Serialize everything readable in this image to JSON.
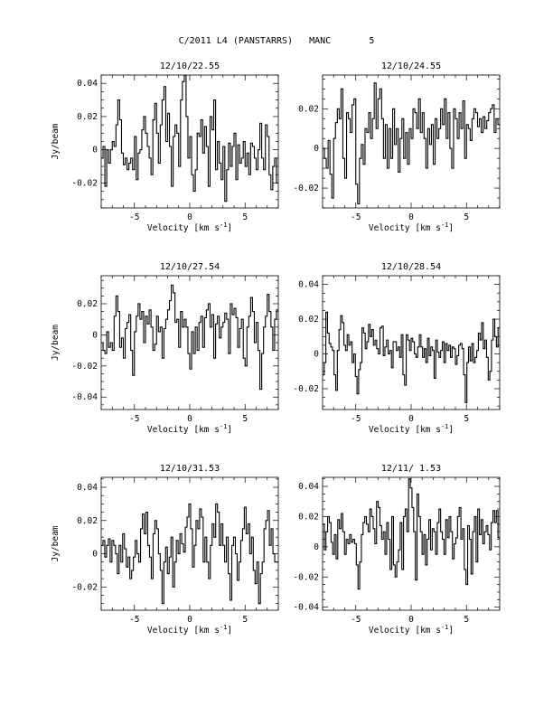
{
  "header": {
    "title": "C/2011 L4 (PANSTARRS)   MANC       5"
  },
  "chart_data": [
    {
      "type": "line",
      "title": "12/10/22.55",
      "xlabel": "Velocity [km s⁻¹]",
      "ylabel": "Jy/beam",
      "xlim": [
        -8,
        8
      ],
      "ylim": [
        -0.035,
        0.045
      ],
      "xticks": [
        "-5",
        "0",
        "5"
      ],
      "yticks": [
        "0.04",
        "0.02",
        "0",
        "-0.02"
      ],
      "series": [
        {
          "values": [
            -0.005,
            0.002,
            -0.022,
            0.0,
            -0.008,
            0.0,
            0.005,
            0.002,
            0.015,
            0.03,
            0.018,
            -0.002,
            -0.009,
            -0.005,
            -0.012,
            -0.008,
            -0.005,
            -0.012,
            0.008,
            -0.018,
            -0.002,
            0.0,
            0.012,
            0.02,
            0.01,
            0.002,
            -0.005,
            -0.015,
            0.018,
            0.028,
            0.01,
            -0.008,
            0.015,
            0.03,
            0.038,
            0.005,
            0.022,
            0.002,
            -0.022,
            0.008,
            0.015,
            0.01,
            -0.01,
            0.03,
            0.041,
            0.046,
            0.02,
            -0.005,
            0.008,
            -0.015,
            -0.025,
            -0.012,
            0.01,
            0.008,
            0.018,
            -0.002,
            0.014,
            0.002,
            -0.022,
            0.02,
            0.012,
            0.03,
            -0.012,
            0.005,
            -0.008,
            -0.018,
            0.002,
            -0.031,
            -0.012,
            0.004,
            -0.01,
            0.002,
            0.01,
            -0.018,
            0.003,
            -0.008,
            -0.005,
            0.005,
            -0.01,
            -0.002,
            -0.015,
            0.004,
            0.002,
            -0.005,
            -0.012,
            0.0,
            0.016,
            -0.005,
            -0.012,
            0.015,
            0.008,
            -0.015,
            -0.024,
            -0.01,
            -0.005,
            -0.02
          ]
        }
      ]
    },
    {
      "type": "line",
      "title": "12/10/24.55",
      "xlabel": "Velocity [km s⁻¹]",
      "ylabel": "",
      "xlim": [
        -8,
        8
      ],
      "ylim": [
        -0.03,
        0.037
      ],
      "xticks": [
        "-5",
        "0",
        "5"
      ],
      "yticks": [
        "0.02",
        "0",
        "-0.02"
      ],
      "series": [
        {
          "values": [
            0.0,
            -0.005,
            -0.01,
            0.004,
            -0.013,
            -0.025,
            0.005,
            0.013,
            0.02,
            0.015,
            0.03,
            -0.005,
            -0.015,
            0.018,
            0.015,
            0.008,
            0.022,
            0.025,
            -0.018,
            -0.028,
            -0.005,
            0.002,
            -0.008,
            0.01,
            0.008,
            0.018,
            0.005,
            0.015,
            0.033,
            0.01,
            0.025,
            0.03,
            0.015,
            -0.005,
            0.012,
            -0.01,
            0.01,
            -0.005,
            0.02,
            0.002,
            0.01,
            -0.012,
            0.005,
            0.015,
            -0.005,
            0.008,
            -0.008,
            0.01,
            0.005,
            0.02,
            0.018,
            0.01,
            0.025,
            0.008,
            0.018,
            0.005,
            -0.01,
            0.01,
            0.002,
            0.012,
            -0.008,
            0.015,
            0.005,
            0.01,
            0.02,
            0.012,
            0.025,
            0.005,
            0.018,
            0.0,
            -0.01,
            0.02,
            0.015,
            0.005,
            0.018,
            0.01,
            0.024,
            -0.005,
            0.012,
            0.01,
            0.004,
            0.015,
            0.02,
            0.018,
            0.011,
            0.015,
            0.008,
            0.016,
            0.01,
            0.014,
            0.018,
            0.02,
            0.022,
            0.008,
            0.015,
            0.012
          ]
        }
      ]
    },
    {
      "type": "line",
      "title": "12/10/27.54",
      "xlabel": "Velocity [km s⁻¹]",
      "ylabel": "Jy/beam",
      "xlim": [
        -8,
        8
      ],
      "ylim": [
        -0.048,
        0.038
      ],
      "xticks": [
        "-5",
        "0",
        "5"
      ],
      "yticks": [
        "0.02",
        "0",
        "-0.02",
        "-0.04"
      ],
      "series": [
        {
          "values": [
            -0.005,
            -0.01,
            -0.012,
            0.002,
            -0.008,
            -0.005,
            -0.01,
            0.012,
            0.025,
            0.015,
            -0.008,
            -0.002,
            -0.015,
            0.004,
            0.008,
            0.013,
            -0.01,
            -0.026,
            0.002,
            0.012,
            0.02,
            0.01,
            0.015,
            -0.005,
            0.012,
            0.007,
            0.016,
            0.005,
            -0.01,
            -0.006,
            0.012,
            0.002,
            0.005,
            -0.015,
            0.004,
            0.01,
            0.016,
            0.022,
            0.032,
            0.027,
            0.008,
            0.01,
            -0.008,
            0.015,
            0.005,
            0.01,
            0.005,
            -0.012,
            -0.022,
            0.002,
            -0.012,
            0.005,
            -0.01,
            0.008,
            0.012,
            -0.008,
            0.011,
            0.016,
            0.02,
            0.005,
            0.013,
            -0.015,
            0.007,
            0.012,
            -0.002,
            0.005,
            0.008,
            0.014,
            0.01,
            -0.012,
            0.02,
            0.013,
            0.017,
            0.011,
            -0.008,
            0.004,
            0.01,
            -0.015,
            -0.02,
            0.005,
            0.012,
            0.024,
            0.015,
            -0.005,
            0.008,
            -0.01,
            -0.035,
            -0.012,
            0.005,
            0.012,
            0.026,
            0.015,
            0.005,
            -0.01,
            0.01,
            0.016
          ]
        }
      ]
    },
    {
      "type": "line",
      "title": "12/10/28.54",
      "xlabel": "Velocity [km s⁻¹]",
      "ylabel": "",
      "xlim": [
        -8,
        8
      ],
      "ylim": [
        -0.032,
        0.045
      ],
      "xticks": [
        "-5",
        "0",
        "5"
      ],
      "yticks": [
        "0.04",
        "0.02",
        "0",
        "-0.02"
      ],
      "series": [
        {
          "values": [
            -0.012,
            -0.005,
            0.024,
            0.012,
            0.006,
            0.004,
            0.002,
            -0.012,
            -0.021,
            0.002,
            0.014,
            0.022,
            0.018,
            0.005,
            0.002,
            0.011,
            0.005,
            0.007,
            -0.005,
            0.0,
            -0.013,
            -0.023,
            -0.009,
            -0.005,
            0.015,
            0.012,
            0.003,
            0.007,
            0.017,
            0.01,
            0.014,
            0.005,
            0.008,
            0.003,
            0.0,
            0.015,
            0.016,
            -0.001,
            0.004,
            0.008,
            0.0,
            0.002,
            -0.008,
            0.007,
            0.007,
            0.002,
            0.004,
            -0.002,
            0.011,
            -0.012,
            -0.018,
            0.011,
            0.008,
            0.002,
            0.009,
            0.007,
            0.0,
            -0.002,
            0.004,
            0.011,
            0.004,
            -0.002,
            0.003,
            -0.005,
            0.009,
            -0.001,
            0.004,
            0.002,
            -0.014,
            0.008,
            0.001,
            -0.002,
            0.002,
            0.007,
            -0.005,
            0.006,
            0.002,
            0.005,
            -0.002,
            0.004,
            0.003,
            -0.006,
            -0.001,
            0.005,
            0.006,
            0.003,
            -0.012,
            -0.028,
            -0.005,
            0.004,
            -0.004,
            0.006,
            -0.005,
            -0.002,
            0.002,
            0.012,
            0.008,
            0.018,
            0.003,
            0.008,
            -0.002,
            -0.015,
            -0.01,
            0.008,
            0.02,
            0.01,
            0.004,
            0.015
          ]
        }
      ]
    },
    {
      "type": "line",
      "title": "12/10/31.53",
      "xlabel": "Velocity [km s⁻¹]",
      "ylabel": "Jy/beam",
      "xlim": [
        -8,
        8
      ],
      "ylim": [
        -0.034,
        0.046
      ],
      "xticks": [
        "-5",
        "0",
        "5"
      ],
      "yticks": [
        "0.04",
        "0.02",
        "0",
        "-0.02"
      ],
      "series": [
        {
          "values": [
            0.005,
            0.008,
            -0.002,
            0.005,
            0.009,
            -0.005,
            0.008,
            0.005,
            0.0,
            -0.012,
            0.005,
            -0.005,
            0.012,
            0.003,
            -0.008,
            -0.002,
            -0.015,
            -0.01,
            -0.002,
            0.008,
            0.0,
            -0.005,
            0.015,
            0.024,
            0.012,
            0.025,
            0.005,
            -0.002,
            -0.015,
            0.012,
            0.02,
            0.015,
            0.0,
            -0.01,
            -0.03,
            -0.005,
            0.004,
            -0.012,
            -0.002,
            0.01,
            -0.02,
            -0.005,
            0.008,
            0.0,
            0.012,
            0.006,
            0.001,
            0.016,
            0.022,
            0.03,
            0.015,
            -0.008,
            0.005,
            0.02,
            0.015,
            0.027,
            0.022,
            -0.005,
            0.01,
            -0.005,
            -0.015,
            0.005,
            0.018,
            0.01,
            0.03,
            0.025,
            0.005,
            0.018,
            0.005,
            -0.005,
            0.01,
            -0.012,
            -0.028,
            0.005,
            0.01,
            0.0,
            -0.016,
            -0.005,
            0.008,
            0.015,
            0.028,
            0.012,
            0.018,
            0.0,
            0.01,
            -0.01,
            -0.018,
            -0.005,
            -0.03,
            -0.012,
            -0.005,
            0.015,
            0.02,
            0.026,
            0.005,
            0.015,
            0.0,
            -0.005,
            -0.005
          ]
        }
      ]
    },
    {
      "type": "line",
      "title": "12/11/ 1.53",
      "xlabel": "Velocity [km s⁻¹]",
      "ylabel": "",
      "xlim": [
        -8,
        8
      ],
      "ylim": [
        -0.042,
        0.046
      ],
      "xticks": [
        "-5",
        "0",
        "5"
      ],
      "yticks": [
        "0.04",
        "0.02",
        "0",
        "-0.02",
        "-0.04"
      ],
      "series": [
        {
          "values": [
            0.015,
            -0.002,
            0.01,
            0.02,
            0.016,
            0.003,
            -0.005,
            0.008,
            -0.008,
            0.018,
            0.012,
            0.022,
            0.01,
            -0.005,
            0.005,
            0.002,
            0.008,
            0.003,
            0.005,
            0.002,
            -0.012,
            -0.028,
            -0.01,
            0.008,
            0.016,
            0.02,
            0.015,
            0.01,
            0.025,
            0.02,
            0.012,
            0.002,
            0.03,
            0.026,
            0.014,
            0.005,
            0.01,
            -0.005,
            0.016,
            0.005,
            -0.015,
            0.02,
            -0.012,
            -0.02,
            -0.01,
            -0.002,
            0.016,
            -0.015,
            0.02,
            0.025,
            0.01,
            0.045,
            0.039,
            0.026,
            0.01,
            -0.022,
            0.035,
            0.02,
            0.01,
            -0.005,
            0.008,
            -0.012,
            0.005,
            0.018,
            -0.002,
            0.012,
            0.01,
            -0.005,
            0.016,
            0.025,
            0.01,
            0.005,
            -0.005,
            0.018,
            0.006,
            0.02,
            0.01,
            -0.008,
            0.002,
            0.006,
            0.02,
            0.026,
            0.005,
            0.012,
            -0.015,
            -0.025,
            0.014,
            0.005,
            -0.018,
            0.01,
            0.02,
            -0.01,
            0.025,
            0.008,
            0.018,
            0.002,
            0.01,
            0.014,
            0.008,
            -0.002,
            0.016,
            0.024,
            0.016,
            0.024,
            0.006
          ]
        }
      ]
    }
  ]
}
